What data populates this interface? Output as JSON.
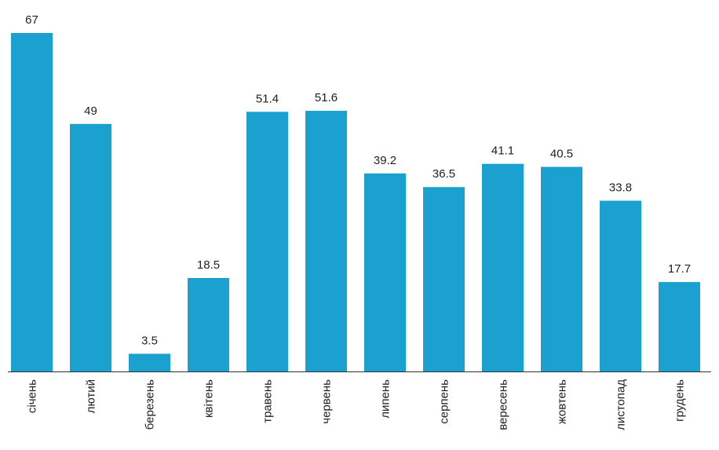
{
  "chart_data": {
    "type": "bar",
    "categories": [
      "січень",
      "лютий",
      "березень",
      "квітень",
      "травень",
      "червень",
      "липень",
      "серпень",
      "вересень",
      "жовтень",
      "листопад",
      "грудень"
    ],
    "values": [
      67,
      49,
      3.5,
      18.5,
      51.4,
      51.6,
      39.2,
      36.5,
      41.1,
      40.5,
      33.8,
      17.7
    ],
    "color": "#1ba1cf"
  }
}
